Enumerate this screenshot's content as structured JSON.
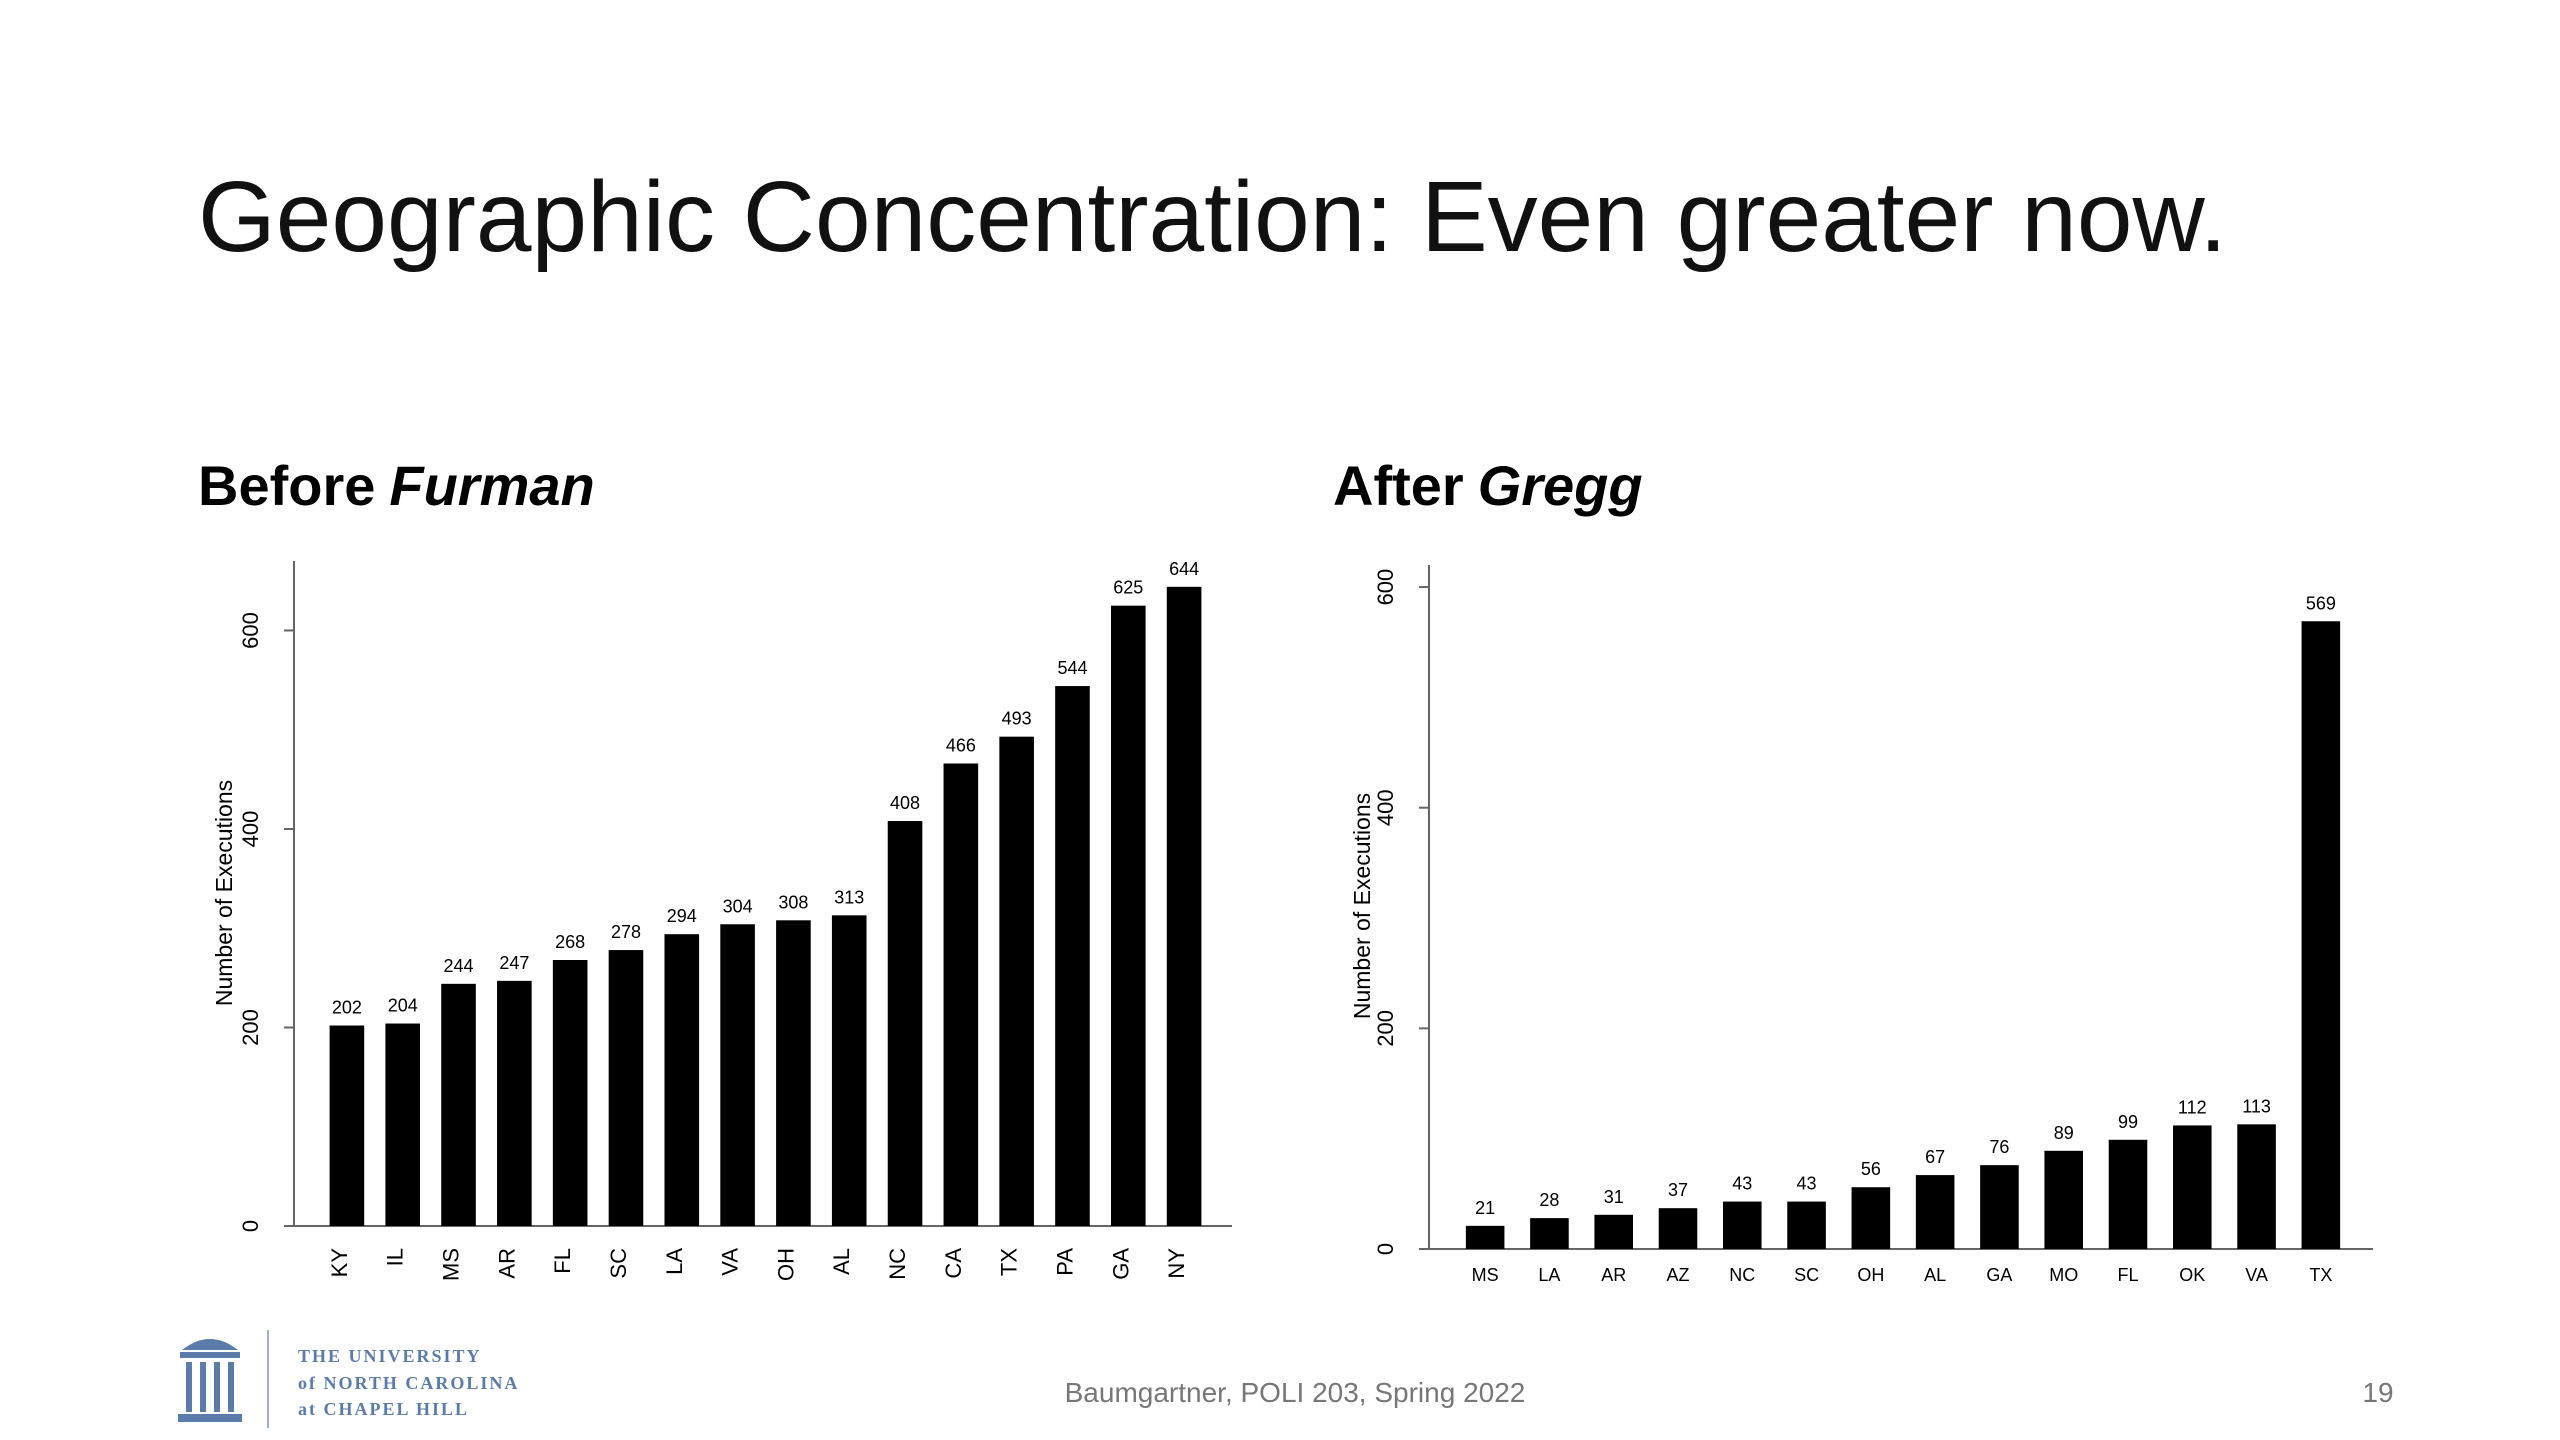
{
  "slide": {
    "title": "Geographic Concentration: Even greater now.",
    "footer": "Baumgartner, POLI 203, Spring 2022",
    "page_number": "19",
    "logo_lines": [
      "THE UNIVERSITY",
      "of NORTH CAROLINA",
      "at CHAPEL HILL"
    ]
  },
  "chart_data": [
    {
      "type": "bar",
      "title": [
        "Before",
        "Furman"
      ],
      "y_label": "Number of Executions",
      "color": "#000000",
      "categories": [
        "KY",
        "IL",
        "MS",
        "AR",
        "FL",
        "SC",
        "LA",
        "VA",
        "OH",
        "AL",
        "NC",
        "CA",
        "TX",
        "PA",
        "GA",
        "NY"
      ],
      "values": [
        202,
        204,
        244,
        247,
        268,
        278,
        294,
        304,
        308,
        313,
        408,
        466,
        493,
        544,
        625,
        644
      ],
      "ylim": [
        0,
        670
      ],
      "yticks": [
        0,
        200,
        400,
        600
      ]
    },
    {
      "type": "bar",
      "title": [
        "After",
        "Gregg"
      ],
      "y_label": "Number of Executions",
      "color": "#000000",
      "categories": [
        "MS",
        "LA",
        "AR",
        "AZ",
        "NC",
        "SC",
        "OH",
        "AL",
        "GA",
        "MO",
        "FL",
        "OK",
        "VA",
        "TX"
      ],
      "values": [
        21,
        28,
        31,
        37,
        43,
        43,
        56,
        67,
        76,
        89,
        99,
        112,
        113,
        569
      ],
      "ylim": [
        0,
        620
      ],
      "yticks": [
        0,
        200,
        400,
        600
      ]
    }
  ]
}
